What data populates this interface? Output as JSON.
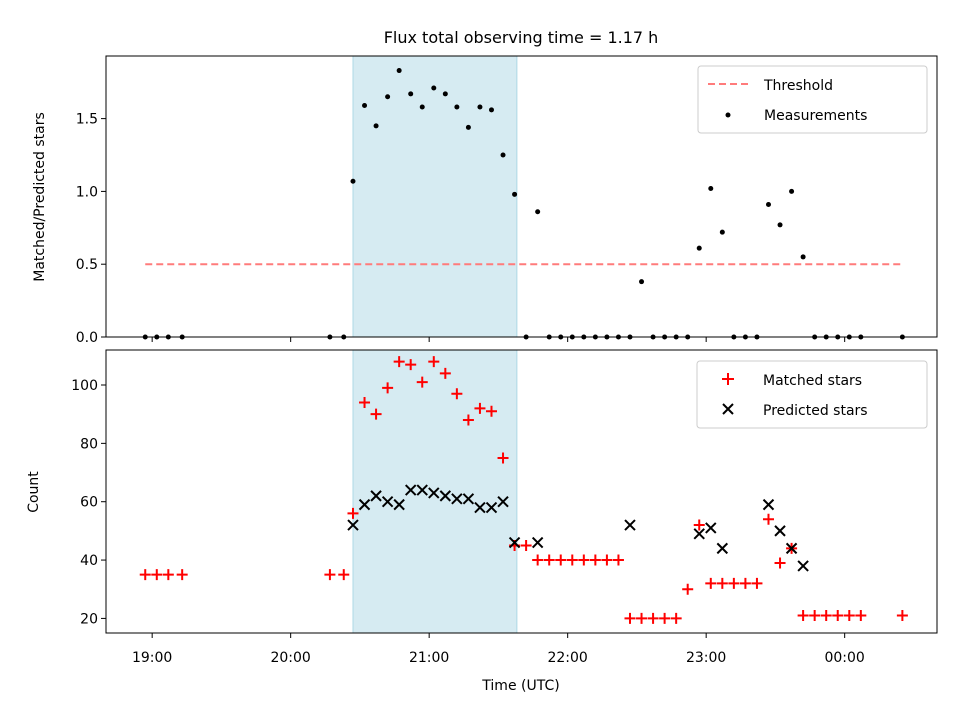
{
  "title": "Flux total observing time = 1.17 h",
  "xlabel": "Time (UTC)",
  "x_ticks": [
    {
      "t": 19.0,
      "label": "19:00"
    },
    {
      "t": 20.0,
      "label": "20:00"
    },
    {
      "t": 21.0,
      "label": "21:00"
    },
    {
      "t": 22.0,
      "label": "22:00"
    },
    {
      "t": 23.0,
      "label": "23:00"
    },
    {
      "t": 24.0,
      "label": "00:00"
    }
  ],
  "xlim": [
    "18:40",
    "00:40"
  ],
  "highlight": {
    "start": "20:27",
    "end": "21:38",
    "color": "#add8e6"
  },
  "chart_data": [
    {
      "type": "scatter",
      "ylabel": "Matched/Predicted stars",
      "ylim": [
        0,
        1.93
      ],
      "yticks": [
        0.0,
        0.5,
        1.0,
        1.5
      ],
      "legend": "top-right",
      "threshold": {
        "name": "Threshold",
        "value": 0.5,
        "x_range": [
          "18:57",
          "00:25"
        ],
        "color": "#ff7b7b"
      },
      "series": [
        {
          "name": "Measurements",
          "color": "#000000",
          "x": [
            "18:57",
            "19:02",
            "19:07",
            "19:13",
            "20:17",
            "20:23",
            "20:27",
            "20:32",
            "20:37",
            "20:42",
            "20:47",
            "20:52",
            "20:57",
            "21:02",
            "21:07",
            "21:12",
            "21:17",
            "21:22",
            "21:27",
            "21:32",
            "21:37",
            "21:42",
            "21:47",
            "21:52",
            "21:57",
            "22:02",
            "22:07",
            "22:12",
            "22:17",
            "22:22",
            "22:27",
            "22:32",
            "22:37",
            "22:42",
            "22:47",
            "22:52",
            "22:57",
            "23:02",
            "23:07",
            "23:12",
            "23:17",
            "23:22",
            "23:27",
            "23:32",
            "23:37",
            "23:42",
            "23:47",
            "23:52",
            "23:57",
            "00:02",
            "00:07",
            "00:25"
          ],
          "y": [
            0,
            0,
            0,
            0,
            0,
            0,
            1.07,
            1.59,
            1.45,
            1.65,
            1.83,
            1.67,
            1.58,
            1.71,
            1.67,
            1.58,
            1.44,
            1.58,
            1.56,
            1.25,
            0.98,
            0,
            0.86,
            0,
            0,
            0,
            0,
            0,
            0,
            0,
            0,
            0.38,
            0,
            0,
            0,
            0,
            0.61,
            1.02,
            0.72,
            0,
            0,
            0,
            0.91,
            0.77,
            1.0,
            0.55,
            0,
            0,
            0,
            0,
            0,
            0
          ]
        }
      ]
    },
    {
      "type": "scatter",
      "ylabel": "Count",
      "ylim": [
        15,
        112
      ],
      "yticks": [
        20,
        40,
        60,
        80,
        100
      ],
      "legend": "top-right",
      "series": [
        {
          "name": "Matched stars",
          "marker": "plus",
          "color": "#ff0000",
          "x": [
            "18:57",
            "19:02",
            "19:07",
            "19:13",
            "20:17",
            "20:23",
            "20:27",
            "20:32",
            "20:37",
            "20:42",
            "20:47",
            "20:52",
            "20:57",
            "21:02",
            "21:07",
            "21:12",
            "21:17",
            "21:22",
            "21:27",
            "21:32",
            "21:37",
            "21:42",
            "21:47",
            "21:52",
            "21:57",
            "22:02",
            "22:07",
            "22:12",
            "22:17",
            "22:22",
            "22:27",
            "22:32",
            "22:37",
            "22:42",
            "22:47",
            "22:52",
            "22:57",
            "23:02",
            "23:07",
            "23:12",
            "23:17",
            "23:22",
            "23:27",
            "23:32",
            "23:37",
            "23:42",
            "23:47",
            "23:52",
            "23:57",
            "00:02",
            "00:07",
            "00:25"
          ],
          "y": [
            35,
            35,
            35,
            35,
            35,
            35,
            56,
            94,
            90,
            99,
            108,
            107,
            101,
            108,
            104,
            97,
            88,
            92,
            91,
            75,
            45,
            45,
            40,
            40,
            40,
            40,
            40,
            40,
            40,
            40,
            20,
            20,
            20,
            20,
            20,
            30,
            52,
            32,
            32,
            32,
            32,
            32,
            54,
            39,
            44,
            21,
            21,
            21,
            21,
            21,
            21,
            21
          ]
        },
        {
          "name": "Predicted stars",
          "marker": "x",
          "color": "#000000",
          "x": [
            "20:27",
            "20:32",
            "20:37",
            "20:42",
            "20:47",
            "20:52",
            "20:57",
            "21:02",
            "21:07",
            "21:12",
            "21:17",
            "21:22",
            "21:27",
            "21:32",
            "21:37",
            "21:47",
            "22:27",
            "22:57",
            "23:02",
            "23:07",
            "23:27",
            "23:32",
            "23:37",
            "23:42"
          ],
          "y": [
            52,
            59,
            62,
            60,
            59,
            64,
            64,
            63,
            62,
            61,
            61,
            58,
            58,
            60,
            46,
            46,
            52,
            49,
            51,
            44,
            59,
            50,
            44,
            38
          ]
        }
      ]
    }
  ]
}
